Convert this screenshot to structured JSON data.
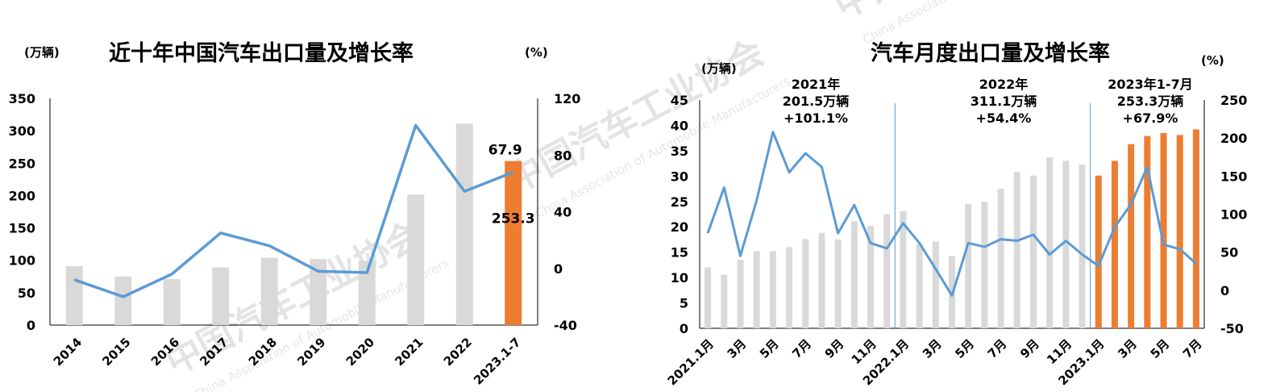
{
  "colors": {
    "bar_gray": "#d9d9d9",
    "bar_orange": "#ed7d31",
    "line_blue": "#5b9bd5",
    "axis": "#000000",
    "watermark": "#e3e3e3"
  },
  "watermark": {
    "text": "中国汽车工业协会",
    "subtext": "China Association of Automobile Manufacturers"
  },
  "chart_data": [
    {
      "type": "bar",
      "title": "近十年中国汽车出口量及增长率",
      "left_unit": "(万辆)",
      "right_unit": "(%)",
      "categories": [
        "2014",
        "2015",
        "2016",
        "2017",
        "2018",
        "2019",
        "2020",
        "2021",
        "2022",
        "2023.1-7"
      ],
      "left_ticks": [
        "0",
        "50",
        "100",
        "150",
        "200",
        "250",
        "300",
        "350"
      ],
      "right_ticks": [
        "-40",
        "0",
        "40",
        "80",
        "120"
      ],
      "ylim": [
        0,
        350
      ],
      "y2lim": [
        -40,
        120
      ],
      "series": [
        {
          "kind": "bar",
          "values": [
            91,
            75,
            71,
            89,
            104,
            102,
            99,
            201.5,
            311.1,
            253.3
          ],
          "highlight_last": true
        },
        {
          "kind": "line",
          "axis": "right",
          "values": [
            -8,
            -20,
            -4,
            25,
            16,
            -2,
            -3,
            101,
            54.4,
            67.9
          ]
        }
      ],
      "data_labels": {
        "bar_last": "253.3",
        "line_last": "67.9"
      }
    },
    {
      "type": "bar",
      "title": "汽车月度出口量及增长率",
      "left_unit": "(万辆)",
      "right_unit": "(%)",
      "tick_labels": [
        "2021.1月",
        "3月",
        "5月",
        "7月",
        "9月",
        "11月",
        "2022.1月",
        "3月",
        "5月",
        "7月",
        "9月",
        "11月",
        "2023.1月",
        "3月",
        "5月",
        "7月"
      ],
      "left_ticks": [
        "0",
        "5",
        "10",
        "15",
        "20",
        "25",
        "30",
        "35",
        "40",
        "45"
      ],
      "right_ticks": [
        "-50",
        "0",
        "50",
        "100",
        "150",
        "200",
        "250"
      ],
      "ylim": [
        0,
        45
      ],
      "y2lim": [
        -50,
        250
      ],
      "year_annotations": [
        {
          "lines": [
            "2021年",
            "201.5万辆",
            "+101.1%"
          ]
        },
        {
          "lines": [
            "2022年",
            "311.1万辆",
            "+54.4%"
          ]
        },
        {
          "lines": [
            "2023年1-7月",
            "253.3万辆",
            "+67.9%"
          ]
        }
      ],
      "series": [
        {
          "kind": "bar",
          "name": "2021",
          "values": [
            12,
            10.6,
            13.5,
            15.2,
            15.2,
            16,
            17.6,
            18.8,
            17.5,
            21.1,
            20.2,
            22.5
          ]
        },
        {
          "kind": "bar",
          "name": "2022",
          "values": [
            23.1,
            16.6,
            17.1,
            14.2,
            24.5,
            24.9,
            27.5,
            30.8,
            30.1,
            33.7,
            33,
            32.3
          ]
        },
        {
          "kind": "bar",
          "name": "2023",
          "highlight": true,
          "values": [
            30.1,
            33,
            36.3,
            37.9,
            38.5,
            38.1,
            39.2
          ]
        },
        {
          "kind": "line",
          "axis": "right",
          "values": [
            75,
            135,
            45,
            118,
            208,
            155,
            180,
            162,
            75,
            112,
            62,
            55,
            88,
            62,
            28,
            -7,
            62,
            57,
            67,
            65,
            73,
            47,
            65,
            47,
            32,
            83,
            113,
            162,
            60,
            54,
            35
          ]
        }
      ]
    }
  ]
}
